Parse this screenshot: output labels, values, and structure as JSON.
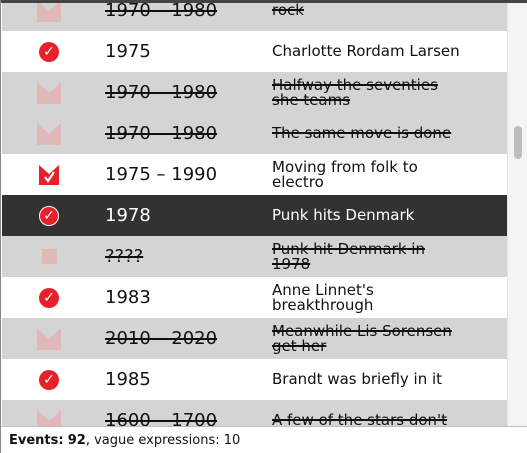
{
  "events": [
    {
      "date": "1970 – 1980",
      "desc": [
        "rock"
      ],
      "vague": true,
      "icon": "range-faded-icon",
      "bg": "alt"
    },
    {
      "date": "1975",
      "desc": [
        "Charlotte Rordam Larsen"
      ],
      "vague": false,
      "icon": "check-icon",
      "bg": "plain"
    },
    {
      "date": "1970 – 1980",
      "desc": [
        "Halfway the seventies",
        "she teams"
      ],
      "vague": true,
      "icon": "range-faded-icon",
      "bg": "alt"
    },
    {
      "date": "1970 – 1980",
      "desc": [
        "The same move is done"
      ],
      "vague": true,
      "icon": "range-faded-icon",
      "bg": "alt"
    },
    {
      "date": "1975 – 1990",
      "desc": [
        "Moving from folk to",
        "electro"
      ],
      "vague": false,
      "icon": "range-check-icon",
      "bg": "plain"
    },
    {
      "date": "1978",
      "desc": [
        "Punk hits Denmark"
      ],
      "vague": false,
      "icon": "check-icon",
      "bg": "selected"
    },
    {
      "date": "????",
      "desc": [
        "Punk hit Denmark in",
        "1978"
      ],
      "vague": true,
      "icon": "square-faded-icon",
      "bg": "alt"
    },
    {
      "date": "1983",
      "desc": [
        "Anne Linnet's",
        "breakthrough"
      ],
      "vague": false,
      "icon": "check-icon",
      "bg": "plain"
    },
    {
      "date": "2010 – 2020",
      "desc": [
        "Meanwhile Lis Sorensen",
        "get her"
      ],
      "vague": true,
      "icon": "range-faded-icon",
      "bg": "alt"
    },
    {
      "date": "1985",
      "desc": [
        "Brandt was briefly in it"
      ],
      "vague": false,
      "icon": "check-icon",
      "bg": "plain"
    },
    {
      "date": "1600 – 1700",
      "desc": [
        "A few of the stars don't"
      ],
      "vague": true,
      "icon": "range-faded-icon",
      "bg": "alt"
    }
  ],
  "status": {
    "events_label": "Events:",
    "events_count": "92",
    "vague_text": ", vague expressions: 10"
  },
  "colors": {
    "accent": "#e8202a",
    "vague_row": "#d4d4d4",
    "selected_row": "#323232"
  }
}
